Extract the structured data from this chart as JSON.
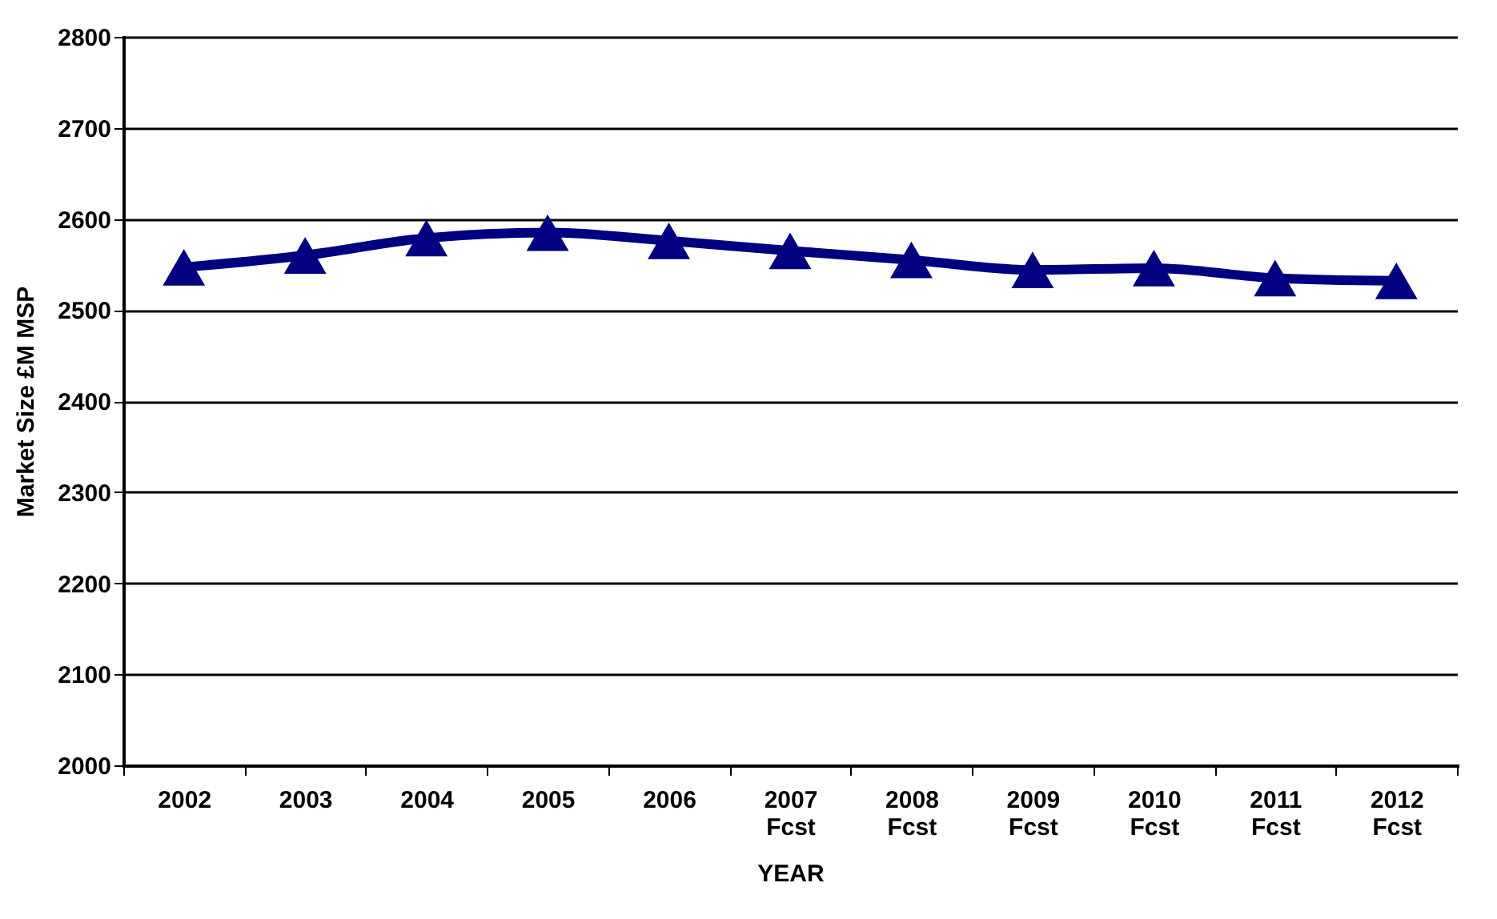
{
  "chart_data": {
    "type": "line",
    "xlabel": "YEAR",
    "ylabel": "Market Size £M MSP",
    "categories": [
      "2002",
      "2003",
      "2004",
      "2005",
      "2006",
      "2007 Fcst",
      "2008 Fcst",
      "2009 Fcst",
      "2010 Fcst",
      "2011 Fcst",
      "2012 Fcst"
    ],
    "series": [
      {
        "color": "#000080",
        "values": [
          2547,
          2560,
          2579,
          2585,
          2576,
          2565,
          2555,
          2544,
          2546,
          2535,
          2532
        ]
      }
    ],
    "ylim": [
      2000,
      2800
    ],
    "yticks": [
      2000,
      2100,
      2200,
      2300,
      2400,
      2500,
      2600,
      2700,
      2800
    ],
    "grid": "y",
    "marker": "triangle",
    "line_style": "solid",
    "legend": false
  }
}
